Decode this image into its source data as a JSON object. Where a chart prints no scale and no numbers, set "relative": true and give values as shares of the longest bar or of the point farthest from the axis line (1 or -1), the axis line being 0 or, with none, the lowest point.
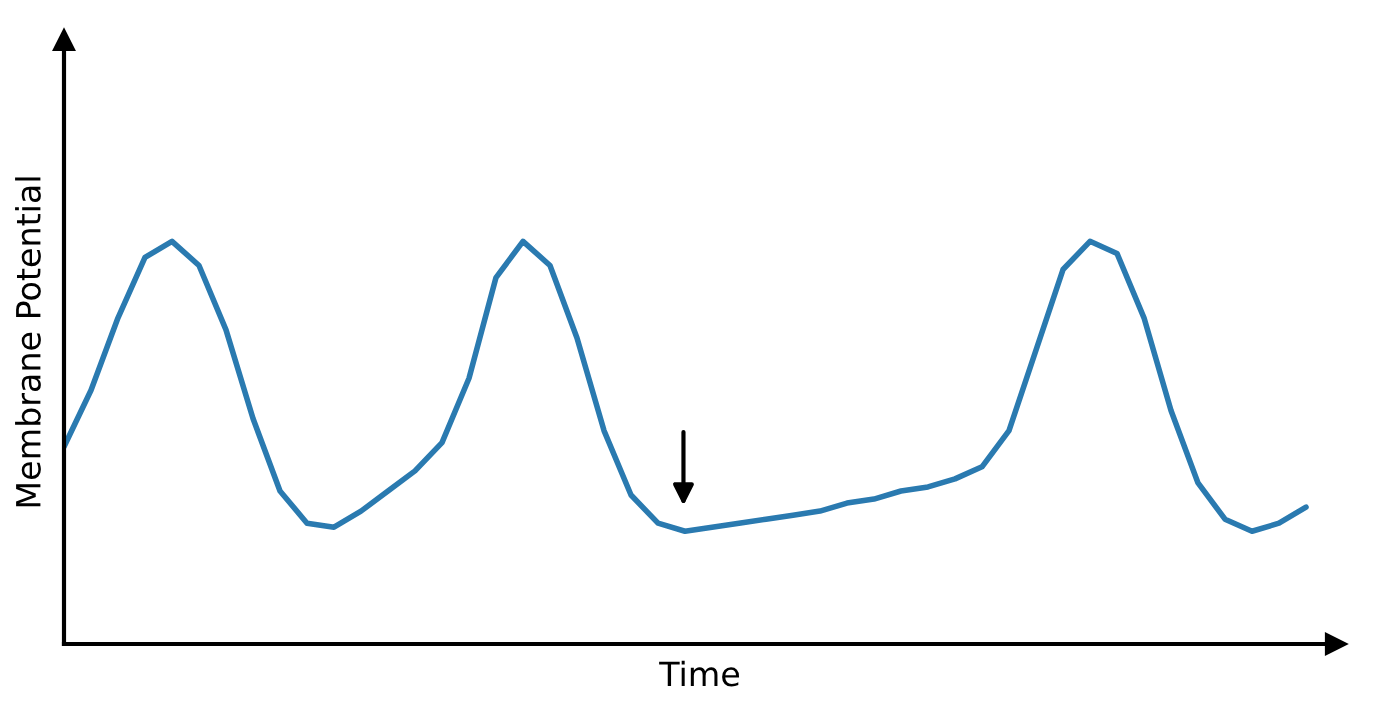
{
  "chart_data": {
    "type": "line",
    "xlabel": "Time",
    "ylabel": "Membrane Potential",
    "relative": true,
    "categories": [
      null,
      null,
      null,
      null,
      null,
      null,
      null,
      null,
      null,
      null,
      null,
      null,
      null,
      null,
      null,
      null,
      null,
      null,
      null,
      null,
      null,
      null,
      null,
      null,
      null,
      null,
      null,
      null,
      null,
      null,
      null,
      null,
      null,
      null,
      null,
      null,
      null,
      null,
      null,
      null,
      null,
      null,
      null,
      null,
      null,
      null,
      null
    ],
    "series": [
      {
        "color": "#2a7ab0",
        "values": [
          0.49,
          0.63,
          0.81,
          0.96,
          1,
          0.94,
          0.78,
          0.56,
          0.38,
          0.3,
          0.29,
          0.33,
          0.38,
          0.43,
          0.5,
          0.66,
          0.91,
          1,
          0.94,
          0.76,
          0.53,
          0.37,
          0.3,
          0.28,
          0.29,
          0.3,
          0.31,
          0.32,
          0.33,
          0.35,
          0.36,
          0.38,
          0.39,
          0.41,
          0.44,
          0.53,
          0.73,
          0.93,
          1,
          0.97,
          0.81,
          0.58,
          0.4,
          0.31,
          0.28,
          0.3,
          0.34
        ]
      }
    ]
  }
}
